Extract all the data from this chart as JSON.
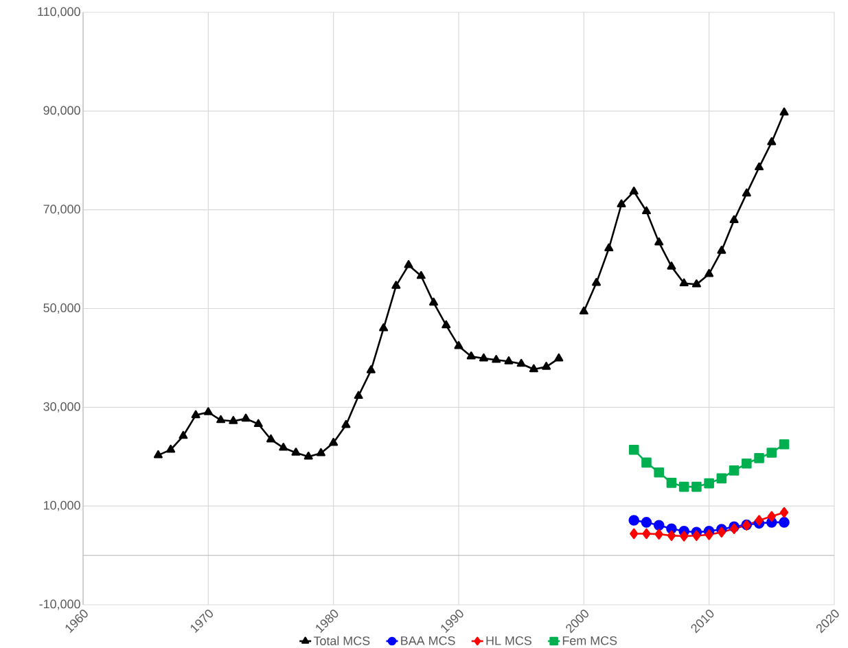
{
  "chart_data": {
    "type": "line",
    "x": [
      1966,
      1967,
      1968,
      1969,
      1970,
      1971,
      1972,
      1973,
      1974,
      1975,
      1976,
      1977,
      1978,
      1979,
      1980,
      1981,
      1982,
      1983,
      1984,
      1985,
      1986,
      1987,
      1988,
      1989,
      1990,
      1991,
      1992,
      1993,
      1994,
      1995,
      1996,
      1997,
      1998,
      1999,
      2000,
      2001,
      2002,
      2003,
      2004,
      2005,
      2006,
      2007,
      2008,
      2009,
      2010,
      2011,
      2012,
      2013,
      2014,
      2015,
      2016
    ],
    "series": [
      {
        "name": "Total MCS",
        "color": "#000000",
        "marker": "triangle",
        "values": [
          20300,
          21400,
          24200,
          28400,
          29000,
          27400,
          27200,
          27700,
          26600,
          23500,
          21800,
          20800,
          20000,
          20700,
          22800,
          26400,
          32300,
          37500,
          46000,
          54600,
          58800,
          56600,
          51200,
          46600,
          42400,
          40300,
          39900,
          39600,
          39300,
          38800,
          37700,
          38200,
          39900,
          null,
          49400,
          55200,
          62200,
          71100,
          73700,
          69700,
          63400,
          58500,
          55100,
          54900,
          57000,
          61700,
          67900,
          73300,
          78600,
          83700,
          89700
        ]
      },
      {
        "name": "BAA MCS",
        "color": "#0000ff",
        "marker": "circle",
        "x": [
          2004,
          2005,
          2006,
          2007,
          2008,
          2009,
          2010,
          2011,
          2012,
          2013,
          2014,
          2015,
          2016
        ],
        "values": [
          7100,
          6700,
          6100,
          5400,
          4900,
          4700,
          4900,
          5300,
          5800,
          6200,
          6500,
          6700,
          6700
        ]
      },
      {
        "name": "HL MCS",
        "color": "#ff0000",
        "marker": "diamond",
        "x": [
          2004,
          2005,
          2006,
          2007,
          2008,
          2009,
          2010,
          2011,
          2012,
          2013,
          2014,
          2015,
          2016
        ],
        "values": [
          4400,
          4400,
          4300,
          4000,
          3900,
          4000,
          4200,
          4700,
          5400,
          6100,
          7100,
          7900,
          8700
        ]
      },
      {
        "name": "Fem MCS",
        "color": "#00b050",
        "marker": "square",
        "x": [
          2004,
          2005,
          2006,
          2007,
          2008,
          2009,
          2010,
          2011,
          2012,
          2013,
          2014,
          2015,
          2016
        ],
        "values": [
          21400,
          18800,
          16800,
          14700,
          13900,
          13900,
          14600,
          15600,
          17200,
          18600,
          19700,
          20800,
          22500
        ]
      }
    ],
    "xlim": [
      1960,
      2020
    ],
    "xticks": [
      1960,
      1970,
      1980,
      1990,
      2000,
      2010,
      2020
    ],
    "ylim": [
      -10000,
      110000
    ],
    "yticks": [
      {
        "value": -10000,
        "label": "-10,000"
      },
      {
        "value": 10000,
        "label": "10,000"
      },
      {
        "value": 30000,
        "label": "30,000"
      },
      {
        "value": 50000,
        "label": "50,000"
      },
      {
        "value": 70000,
        "label": "70,000"
      },
      {
        "value": 90000,
        "label": "90,000"
      },
      {
        "value": 110000,
        "label": "110,000"
      }
    ],
    "grid": true,
    "legend": "bottom",
    "line_style": "solid"
  }
}
